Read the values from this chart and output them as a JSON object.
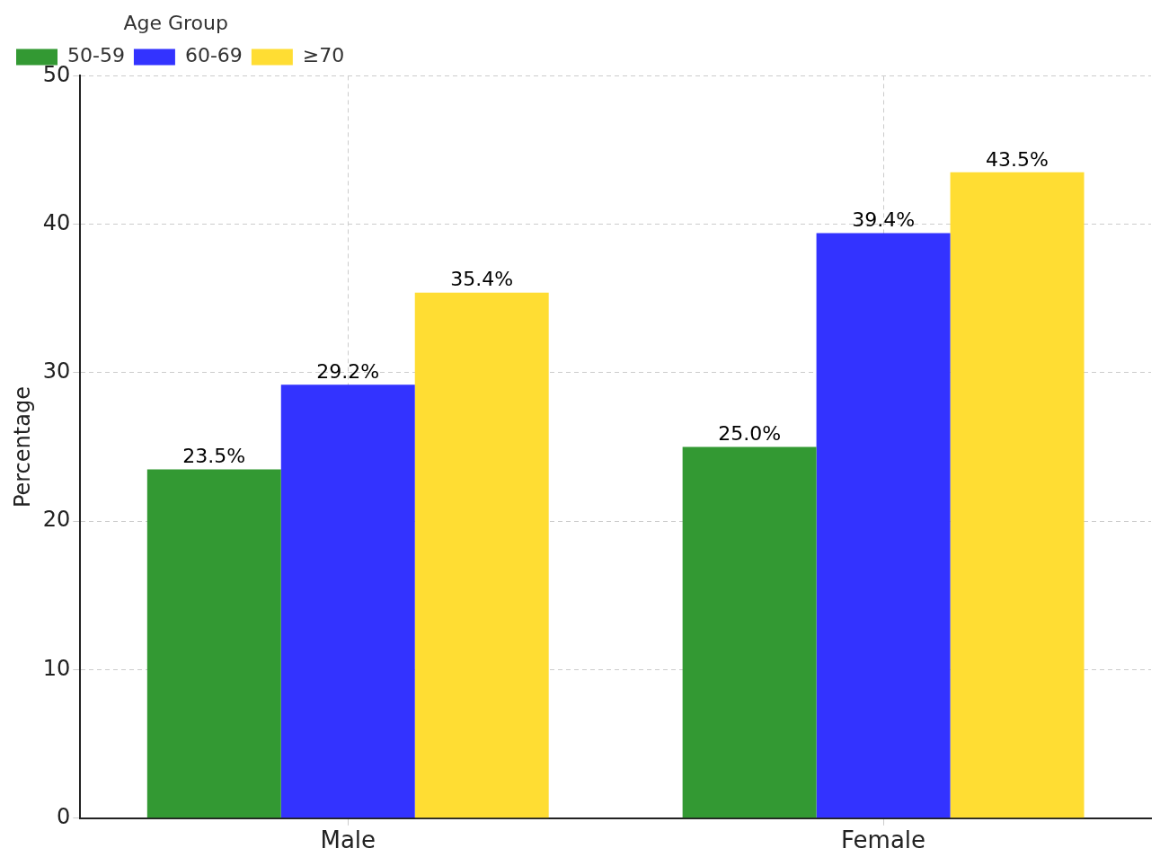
{
  "chart_data": {
    "type": "bar",
    "ylabel": "Percentage",
    "legend_title": "Age Group",
    "categories": [
      "Male",
      "Female"
    ],
    "series": [
      {
        "name": "50-59",
        "color": "#339933",
        "values": [
          23.5,
          25.0
        ],
        "value_labels": [
          "23.5%",
          "25.0%"
        ]
      },
      {
        "name": "60-69",
        "color": "#3333ff",
        "values": [
          29.2,
          39.4
        ],
        "value_labels": [
          "29.2%",
          "39.4%"
        ]
      },
      {
        "name": "≥70",
        "color": "#ffdd33",
        "values": [
          35.4,
          43.5
        ],
        "value_labels": [
          "35.4%",
          "43.5%"
        ]
      }
    ],
    "ylim": [
      0,
      50
    ],
    "yticks": [
      0,
      10,
      20,
      30,
      40,
      50
    ],
    "grid": true,
    "legend": "top left"
  }
}
